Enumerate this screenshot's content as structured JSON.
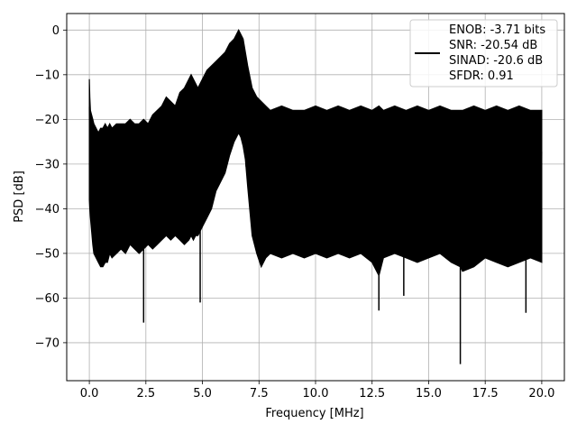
{
  "chart_data": {
    "type": "line",
    "title": "",
    "xlabel": "Frequency [MHz]",
    "ylabel": "PSD [dB]",
    "xlim": [
      -1.0,
      21.0
    ],
    "ylim": [
      -78.5,
      3.7
    ],
    "xticks": [
      0.0,
      2.5,
      5.0,
      7.5,
      10.0,
      12.5,
      15.0,
      17.5,
      20.0
    ],
    "xtick_labels": [
      "0.0",
      "2.5",
      "5.0",
      "7.5",
      "10.0",
      "12.5",
      "15.0",
      "17.5",
      "20.0"
    ],
    "yticks": [
      0,
      -10,
      -20,
      -30,
      -40,
      -50,
      -60,
      -70
    ],
    "ytick_labels": [
      "0",
      "−10",
      "−20",
      "−30",
      "−40",
      "−50",
      "−60",
      "−70"
    ],
    "grid": true,
    "legend_position": "top-right",
    "series": [
      {
        "color": "#000000",
        "x": [
          0.0,
          0.02,
          0.05,
          0.1,
          0.15,
          0.2,
          0.3,
          0.4,
          0.5,
          0.6,
          0.7,
          0.8,
          0.9,
          1.0,
          1.2,
          1.4,
          1.6,
          1.8,
          2.0,
          2.2,
          2.4,
          2.6,
          2.8,
          3.0,
          3.2,
          3.4,
          3.6,
          3.8,
          4.0,
          4.2,
          4.4,
          4.5,
          4.6,
          4.7,
          4.8,
          5.0,
          5.2,
          5.4,
          5.6,
          5.8,
          6.0,
          6.2,
          6.4,
          6.5,
          6.6,
          6.7,
          6.8,
          6.9,
          7.0,
          7.2,
          7.4,
          7.6,
          7.8,
          8.0,
          8.5,
          9.0,
          9.5,
          10.0,
          10.5,
          11.0,
          11.5,
          12.0,
          12.5,
          12.8,
          13.0,
          13.5,
          14.0,
          14.5,
          15.0,
          15.5,
          16.0,
          16.4,
          16.5,
          17.0,
          17.5,
          18.0,
          18.5,
          19.0,
          19.5,
          20.0
        ],
        "upper": [
          -11,
          -15,
          -18,
          -19,
          -20,
          -21,
          -22,
          -23,
          -22,
          -22,
          -21,
          -22,
          -21,
          -22,
          -21,
          -21,
          -21,
          -20,
          -21,
          -21,
          -20,
          -21,
          -19,
          -18,
          -17,
          -15,
          -16,
          -17,
          -14,
          -13,
          -11,
          -10,
          -11,
          -12,
          -13,
          -11,
          -9,
          -8,
          -7,
          -6,
          -5,
          -3,
          -2,
          -1,
          0,
          -1,
          -2,
          -5,
          -8,
          -13,
          -15,
          -16,
          -17,
          -18,
          -17,
          -18,
          -18,
          -17,
          -18,
          -17,
          -18,
          -17,
          -18,
          -17,
          -18,
          -17,
          -18,
          -17,
          -18,
          -17,
          -18,
          -18,
          -18,
          -17,
          -18,
          -17,
          -18,
          -17,
          -18,
          -18
        ],
        "lower": [
          -38,
          -40,
          -42,
          -45,
          -48,
          -50,
          -51,
          -52,
          -53,
          -53,
          -52,
          -52,
          -50,
          -51,
          -50,
          -49,
          -50,
          -48,
          -49,
          -50,
          -49,
          -48,
          -49,
          -48,
          -47,
          -46,
          -47,
          -46,
          -47,
          -48,
          -47,
          -46,
          -47,
          -46,
          -46,
          -44,
          -42,
          -40,
          -36,
          -34,
          -32,
          -28,
          -25,
          -24,
          -23,
          -24,
          -26,
          -29,
          -35,
          -46,
          -50,
          -53,
          -51,
          -50,
          -51,
          -50,
          -51,
          -50,
          -51,
          -50,
          -51,
          -50,
          -52,
          -55,
          -51,
          -50,
          -51,
          -52,
          -51,
          -50,
          -52,
          -53,
          -54,
          -53,
          -51,
          -52,
          -53,
          -52,
          -51,
          -52
        ],
        "spikes_down": [
          [
            2.4,
            -65.5
          ],
          [
            4.9,
            -61.0
          ],
          [
            12.8,
            -62.8
          ],
          [
            13.9,
            -59.5
          ],
          [
            16.4,
            -74.8
          ],
          [
            19.3,
            -63.3
          ]
        ]
      }
    ]
  },
  "legend": {
    "lines": [
      "ENOB: -3.71 bits",
      "SNR: -20.54 dB",
      "SINAD: -20.6 dB",
      "SFDR: 0.91"
    ]
  }
}
